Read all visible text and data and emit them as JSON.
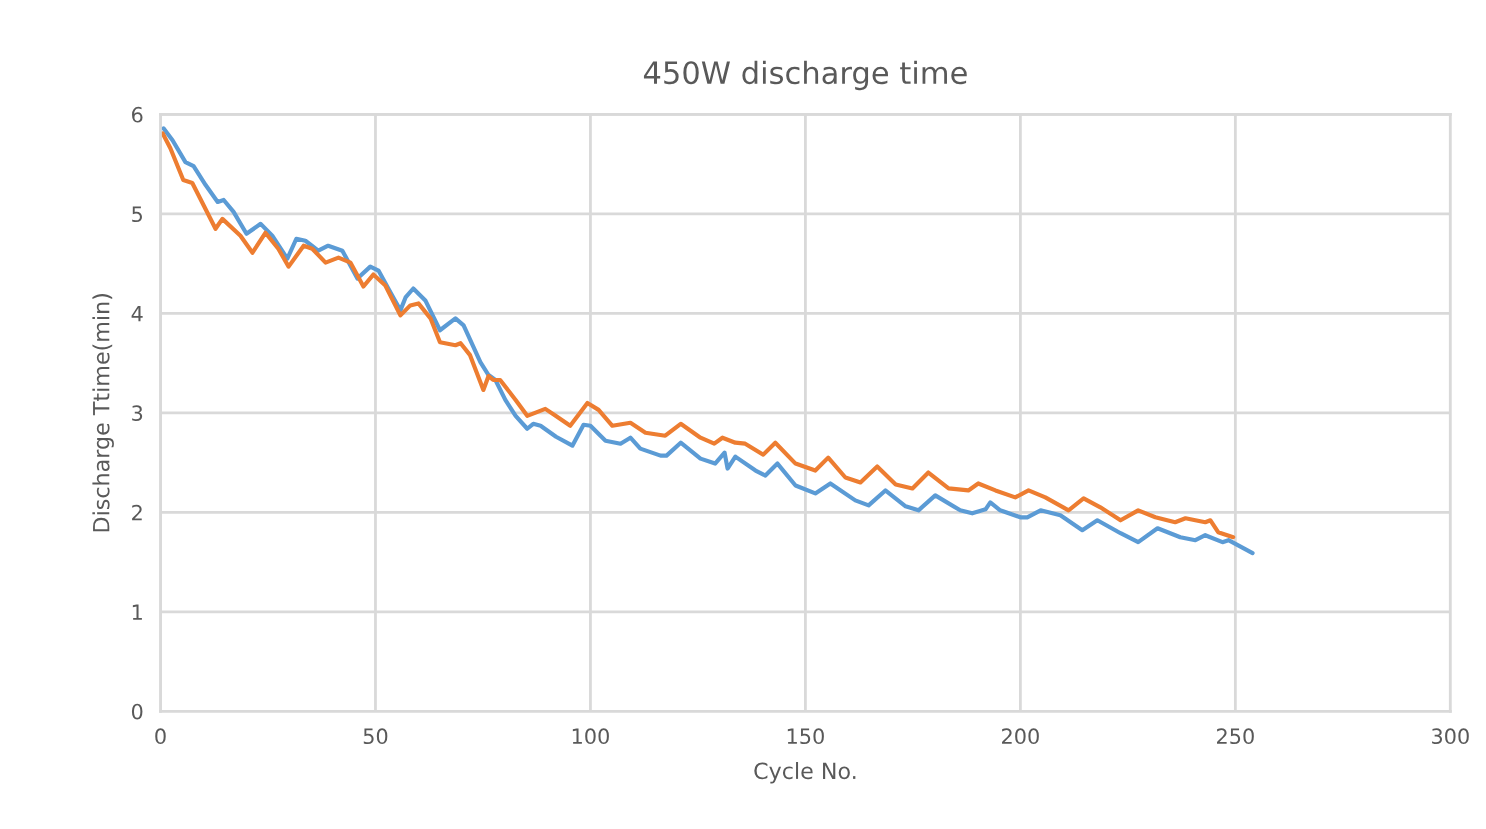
{
  "chart_data": {
    "type": "line",
    "title": "450W discharge time",
    "xlabel": "Cycle No.",
    "ylabel": "Discharge Ttime(min)",
    "xlim": [
      0,
      300
    ],
    "xticks": [
      0,
      50,
      100,
      150,
      200,
      250,
      300
    ],
    "ylim": [
      0,
      6
    ],
    "yticks": [
      0,
      1,
      2,
      3,
      4,
      5,
      6
    ],
    "grid": true,
    "marker": "none",
    "line_style": "solid",
    "series": [
      {
        "color": "#5b9bd5",
        "x": [
          0.7,
          2.8,
          5.8,
          7.7,
          10.5,
          13.3,
          14.7,
          17,
          20,
          23.3,
          26,
          29.5,
          31.6,
          33.7,
          36.7,
          39,
          42.3,
          45.8,
          48.8,
          50.7,
          53.5,
          55.8,
          57,
          58.8,
          61.6,
          65,
          68.6,
          70.5,
          74.4,
          76.3,
          77.9,
          80.2,
          82.6,
          85.3,
          86.7,
          88.4,
          92,
          95.8,
          98.4,
          100,
          103.5,
          107,
          109.3,
          111.6,
          116.3,
          117.7,
          121,
          125.6,
          129,
          131.2,
          131.9,
          133.7,
          138.4,
          140.7,
          143.5,
          147.7,
          152.3,
          155.8,
          161.6,
          164.7,
          168.6,
          173.3,
          176.3,
          180.2,
          186,
          188.8,
          191.9,
          193,
          195.3,
          200,
          201.6,
          204.7,
          209.3,
          214.4,
          217.9,
          223.3,
          227.4,
          231.9,
          237.2,
          240.7,
          243,
          247,
          248.4,
          254
        ],
        "values": [
          5.86,
          5.74,
          5.52,
          5.48,
          5.29,
          5.12,
          5.14,
          5.02,
          4.8,
          4.9,
          4.78,
          4.55,
          4.75,
          4.73,
          4.63,
          4.68,
          4.63,
          4.35,
          4.47,
          4.43,
          4.21,
          4.03,
          4.16,
          4.25,
          4.13,
          3.83,
          3.95,
          3.88,
          3.51,
          3.38,
          3.33,
          3.13,
          2.97,
          2.84,
          2.89,
          2.87,
          2.76,
          2.67,
          2.88,
          2.87,
          2.72,
          2.69,
          2.75,
          2.64,
          2.57,
          2.57,
          2.7,
          2.54,
          2.49,
          2.6,
          2.44,
          2.56,
          2.42,
          2.37,
          2.49,
          2.27,
          2.19,
          2.29,
          2.12,
          2.07,
          2.22,
          2.06,
          2.02,
          2.17,
          2.02,
          1.99,
          2.03,
          2.1,
          2.02,
          1.95,
          1.95,
          2.02,
          1.97,
          1.82,
          1.92,
          1.79,
          1.7,
          1.84,
          1.75,
          1.72,
          1.77,
          1.7,
          1.72,
          1.59
        ]
      },
      {
        "color": "#ed7d31",
        "x": [
          0.5,
          2.3,
          5.3,
          7.4,
          10,
          12.8,
          14.4,
          18.6,
          21.4,
          24.4,
          27.4,
          29.8,
          33.3,
          35.3,
          38.4,
          41.4,
          44.2,
          47.2,
          49.5,
          52.3,
          55.8,
          58.1,
          60,
          62.8,
          65,
          68.6,
          69.8,
          72,
          75.1,
          76.3,
          77.4,
          79,
          82.6,
          85.3,
          89.5,
          91.9,
          95.3,
          99.3,
          101.9,
          105.1,
          109.3,
          112.8,
          117.4,
          121,
          125.6,
          128.8,
          130.7,
          133.7,
          136,
          140.2,
          143,
          147.7,
          152.3,
          155.3,
          159.3,
          162.8,
          166.7,
          171,
          174.9,
          178.6,
          183.3,
          187.9,
          190.2,
          194.2,
          198.8,
          201.9,
          205.8,
          211.2,
          214.7,
          218.6,
          223.3,
          227.4,
          231.4,
          236,
          238.4,
          243,
          244.2,
          246,
          249.5
        ],
        "values": [
          5.81,
          5.66,
          5.34,
          5.31,
          5.09,
          4.85,
          4.95,
          4.78,
          4.61,
          4.81,
          4.65,
          4.47,
          4.68,
          4.65,
          4.51,
          4.56,
          4.51,
          4.27,
          4.39,
          4.28,
          3.98,
          4.08,
          4.1,
          3.95,
          3.71,
          3.68,
          3.7,
          3.58,
          3.23,
          3.37,
          3.33,
          3.33,
          3.13,
          2.97,
          3.04,
          2.97,
          2.87,
          3.1,
          3.03,
          2.87,
          2.9,
          2.8,
          2.77,
          2.89,
          2.75,
          2.69,
          2.75,
          2.7,
          2.69,
          2.58,
          2.7,
          2.49,
          2.42,
          2.55,
          2.35,
          2.3,
          2.46,
          2.28,
          2.24,
          2.4,
          2.24,
          2.22,
          2.29,
          2.22,
          2.15,
          2.22,
          2.15,
          2.02,
          2.14,
          2.05,
          1.92,
          2.02,
          1.95,
          1.9,
          1.94,
          1.9,
          1.92,
          1.8,
          1.75
        ]
      }
    ]
  }
}
